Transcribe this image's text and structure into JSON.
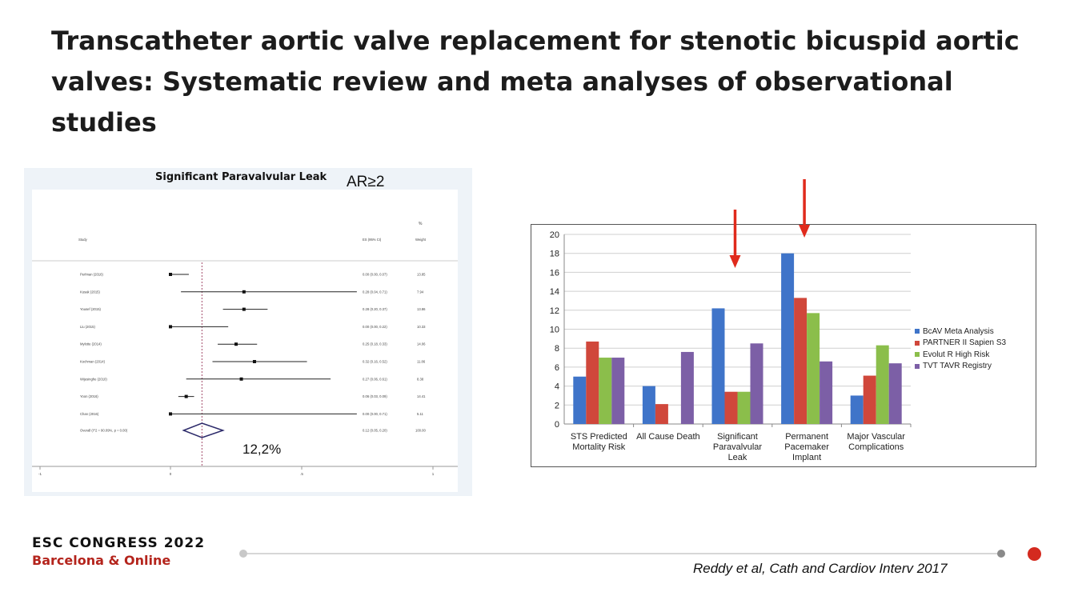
{
  "slide": {
    "title": "Transcatheter aortic valve replacement for stenotic bicuspid aortic valves: Systematic review and meta analyses of observational studies",
    "citation": "Reddy et al, Cath and Cardiov Interv 2017"
  },
  "footer": {
    "brand_line1": "ESC CONGRESS 2022",
    "brand_line2": "Barcelona & Online"
  },
  "forest": {
    "title": "Significant Paravalvular Leak",
    "annotation": "AR≥2",
    "pooled_label": "12,2%",
    "header_percent": "%",
    "header_study": "Study",
    "header_es": "ES (95% CI)",
    "header_weight": "Weight",
    "xlim": [
      -1,
      1
    ],
    "ticks": [
      {
        "value": -1,
        "label": "-1"
      },
      {
        "value": 0,
        "label": "0"
      },
      {
        "value": 0.5,
        "label": ".5"
      },
      {
        "value": 1,
        "label": "1"
      }
    ],
    "rows": [
      {
        "study": "Perlman (2016)",
        "es": 0.0,
        "lo": 0.0,
        "hi": 0.07,
        "es_text": "0.00 (0.00, 0.07)",
        "weight": "13.85"
      },
      {
        "study": "Kusak (2015)",
        "es": 0.28,
        "lo": 0.04,
        "hi": 0.71,
        "es_text": "0.28 (0.04, 0.71)",
        "weight": "7.94"
      },
      {
        "study": "Yousef (2015)",
        "es": 0.28,
        "lo": 0.2,
        "hi": 0.37,
        "es_text": "0.28 (0.20, 0.37)",
        "weight": "13.86"
      },
      {
        "study": "Liu (2015)",
        "es": 0.0,
        "lo": 0.0,
        "hi": 0.22,
        "es_text": "0.00 (0.00, 0.22)",
        "weight": "10.33"
      },
      {
        "study": "Mylotte (2014)",
        "es": 0.25,
        "lo": 0.18,
        "hi": 0.33,
        "es_text": "0.25 (0.18, 0.33)",
        "weight": "14.06"
      },
      {
        "study": "Kochman (2014)",
        "es": 0.32,
        "lo": 0.16,
        "hi": 0.52,
        "es_text": "0.32 (0.16, 0.52)",
        "weight": "11.86"
      },
      {
        "study": "Wijesinghe (2010)",
        "es": 0.27,
        "lo": 0.06,
        "hi": 0.61,
        "es_text": "0.27 (0.06, 0.61)",
        "weight": "8.38"
      },
      {
        "study": "Yoon (2016)",
        "es": 0.06,
        "lo": 0.03,
        "hi": 0.09,
        "es_text": "0.06 (0.03, 0.09)",
        "weight": "14.41"
      },
      {
        "study": "Chan (2016)",
        "es": 0.0,
        "lo": 0.0,
        "hi": 0.71,
        "es_text": "0.00 (0.00, 0.71)",
        "weight": "5.11"
      }
    ],
    "overall": {
      "label": "Overall (I^2 = 90.09%, p = 0.00)",
      "es": 0.12,
      "lo": 0.05,
      "hi": 0.2,
      "es_text": "0.12 (0.05, 0.20)",
      "weight": "100.00"
    }
  },
  "chart_data": {
    "type": "bar",
    "categories": [
      [
        "STS Predicted",
        "Mortality Risk"
      ],
      [
        "All Cause Death"
      ],
      [
        "Significant",
        "Paravalvular",
        "Leak"
      ],
      [
        "Permanent",
        "Pacemaker",
        "Implant"
      ],
      [
        "Major Vascular",
        "Complications"
      ]
    ],
    "series": [
      {
        "name": "BcAV Meta Analysis",
        "color": "#3f74c9",
        "values": [
          5.0,
          4.0,
          12.2,
          18.0,
          3.0
        ]
      },
      {
        "name": "PARTNER II Sapien S3",
        "color": "#d0473b",
        "values": [
          8.7,
          2.1,
          3.4,
          13.3,
          5.1
        ]
      },
      {
        "name": "Evolut R High Risk",
        "color": "#8bbe4b",
        "values": [
          7.0,
          0,
          3.4,
          11.7,
          8.3
        ]
      },
      {
        "name": "TVT TAVR Registry",
        "color": "#7c5fa6",
        "values": [
          7.0,
          7.6,
          8.5,
          6.6,
          6.4
        ]
      }
    ],
    "ylim": [
      0,
      20
    ],
    "yticks": [
      0,
      2,
      4,
      6,
      8,
      10,
      12,
      14,
      16,
      18,
      20
    ],
    "grid": true,
    "legend": "right",
    "annotations": [
      {
        "type": "arrow",
        "category_index": 2,
        "color": "#e02a1c"
      },
      {
        "type": "arrow",
        "category_index": 3,
        "color": "#e02a1c"
      }
    ]
  }
}
